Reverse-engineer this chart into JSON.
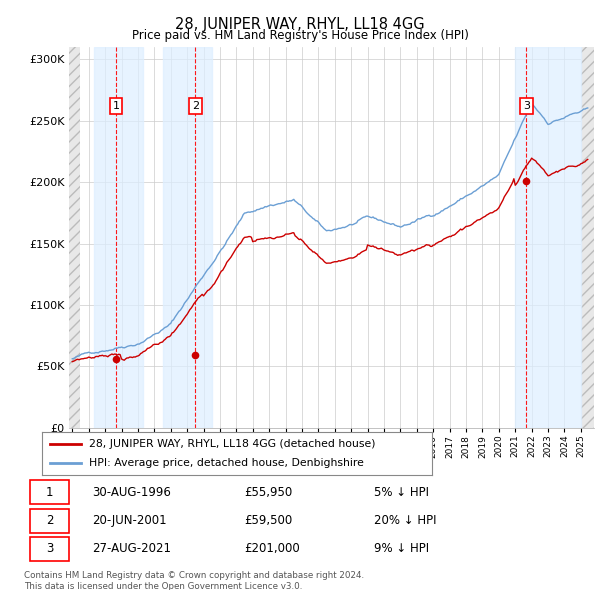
{
  "title": "28, JUNIPER WAY, RHYL, LL18 4GG",
  "subtitle": "Price paid vs. HM Land Registry's House Price Index (HPI)",
  "ylim": [
    0,
    310000
  ],
  "yticks": [
    0,
    50000,
    100000,
    150000,
    200000,
    250000,
    300000
  ],
  "ytick_labels": [
    "£0",
    "£50K",
    "£100K",
    "£150K",
    "£200K",
    "£250K",
    "£300K"
  ],
  "hpi_color": "#6b9fd4",
  "price_color": "#cc0000",
  "sale_marker_color": "#cc0000",
  "legend_line1": "28, JUNIPER WAY, RHYL, LL18 4GG (detached house)",
  "legend_line2": "HPI: Average price, detached house, Denbighshire",
  "sale1_date": "30-AUG-1996",
  "sale1_price": 55950,
  "sale1_pct": "5% ↓ HPI",
  "sale2_date": "20-JUN-2001",
  "sale2_price": 59500,
  "sale2_pct": "20% ↓ HPI",
  "sale3_date": "27-AUG-2021",
  "sale3_price": 201000,
  "sale3_pct": "9% ↓ HPI",
  "footer1": "Contains HM Land Registry data © Crown copyright and database right 2024.",
  "footer2": "This data is licensed under the Open Government Licence v3.0.",
  "shade_color": "#ddeeff",
  "hatch_color": "#bbbbbb",
  "grid_color": "#cccccc"
}
